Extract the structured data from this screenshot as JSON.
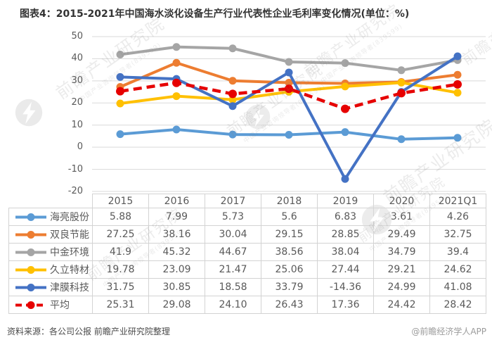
{
  "title": "图表4：2015-2021年中国海水淡化设备生产行业代表性企业毛利率变化情况(单位：%)",
  "source_note": "资料来源：各公司公报 前瞻产业研究院整理",
  "attribution": "@前瞻经济学人APP",
  "watermark": {
    "main": "前瞻产业研究院",
    "sub": "中国产业咨询领导者(839599)"
  },
  "colors": {
    "gridline": "#d9d9d9",
    "table_border": "#d3d3d3",
    "text": "#595959"
  },
  "chart_data": {
    "type": "line",
    "title": "图表4：2015-2021年中国海水淡化设备生产行业代表性企业毛利率变化情况(单位：%)",
    "categories": [
      "2015",
      "2016",
      "2017",
      "2018",
      "2019",
      "2020",
      "2021Q1"
    ],
    "series": [
      {
        "name": "海亮股份",
        "color": "#5B9BD5",
        "dashed": false,
        "values": [
          5.88,
          7.99,
          5.73,
          5.6,
          6.83,
          3.61,
          4.26
        ]
      },
      {
        "name": "双良节能",
        "color": "#ED7D31",
        "dashed": false,
        "values": [
          27.25,
          38.16,
          30.04,
          29.15,
          28.85,
          29.49,
          32.75
        ]
      },
      {
        "name": "中金环境",
        "color": "#A5A5A5",
        "dashed": false,
        "values": [
          41.9,
          45.32,
          44.67,
          38.56,
          38.04,
          34.79,
          39.4
        ]
      },
      {
        "name": "久立特材",
        "color": "#FFC000",
        "dashed": false,
        "values": [
          19.78,
          23.09,
          21.47,
          25.06,
          27.44,
          29.21,
          24.62
        ]
      },
      {
        "name": "津膜科技",
        "color": "#4472C4",
        "dashed": false,
        "values": [
          31.75,
          30.85,
          18.58,
          33.79,
          -14.36,
          24.99,
          41.08
        ]
      },
      {
        "name": "平均",
        "color": "#E60000",
        "dashed": true,
        "values": [
          25.31,
          29.08,
          24.1,
          26.43,
          17.36,
          24.42,
          28.42
        ]
      }
    ],
    "ylim": [
      -20,
      50
    ],
    "yticks": [
      50,
      40,
      30,
      20,
      10,
      0,
      -10,
      -20
    ],
    "grid": true,
    "legend_position": "table-left",
    "ylabel": "",
    "xlabel": ""
  },
  "table": {
    "col_headers": [
      "2015",
      "2016",
      "2017",
      "2018",
      "2019",
      "2020",
      "2021Q1"
    ],
    "rows": [
      {
        "name": "海亮股份",
        "values": [
          "5.88",
          "7.99",
          "5.73",
          "5.6",
          "6.83",
          "3.61",
          "4.26"
        ]
      },
      {
        "name": "双良节能",
        "values": [
          "27.25",
          "38.16",
          "30.04",
          "29.15",
          "28.85",
          "29.49",
          "32.75"
        ]
      },
      {
        "name": "中金环境",
        "values": [
          "41.9",
          "45.32",
          "44.67",
          "38.56",
          "38.04",
          "34.79",
          "39.4"
        ]
      },
      {
        "name": "久立特材",
        "values": [
          "19.78",
          "23.09",
          "21.47",
          "25.06",
          "27.44",
          "29.21",
          "24.62"
        ]
      },
      {
        "name": "津膜科技",
        "values": [
          "31.75",
          "30.85",
          "18.58",
          "33.79",
          "-14.36",
          "24.99",
          "41.08"
        ]
      },
      {
        "name": "平均",
        "values": [
          "25.31",
          "29.08",
          "24.10",
          "26.43",
          "17.36",
          "24.42",
          "28.42"
        ]
      }
    ]
  }
}
